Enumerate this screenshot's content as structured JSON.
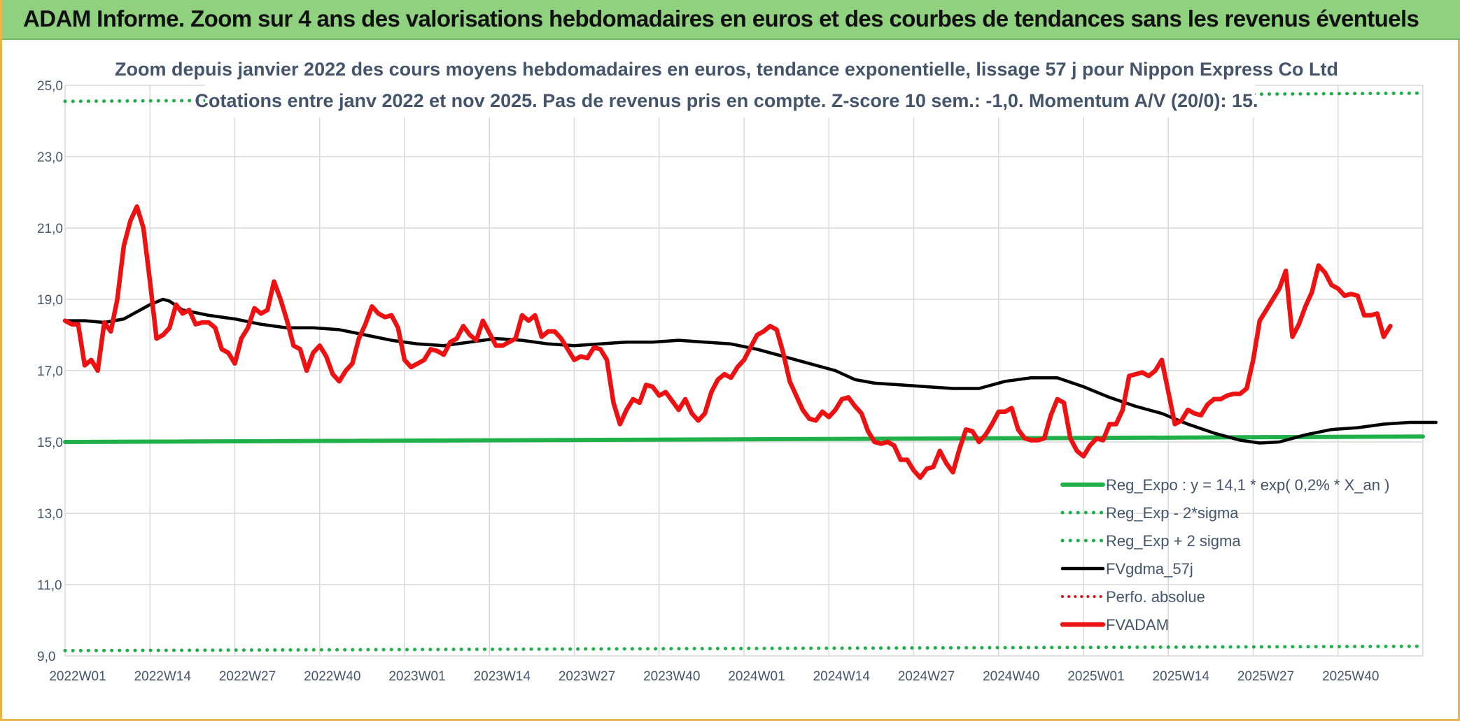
{
  "page": {
    "title": "ADAM Informe. Zoom sur 4 ans des valorisations hebdomadaires en euros et des courbes de tendances sans les revenus éventuels"
  },
  "colors": {
    "header_bg": "#8fd17f",
    "reg_expo": "#1fb04a",
    "sigma_bands": "#1fb04a",
    "fvgdma": "#000000",
    "perfo": "#e01010",
    "fvadam": "#ee1111",
    "grid": "#d9d9d9"
  },
  "chart_data": {
    "type": "line",
    "title_line1": "Zoom depuis janvier 2022 des cours moyens hebdomadaires en euros, tendance exponentielle, lissage 57 j pour Nippon Express Co Ltd",
    "title_line2": "Cotations entre janv 2022 et nov 2025. Pas de revenus pris en compte. Z-score 10 sem.: -1,0. Momentum A/V (20/0): 15.",
    "ylim": [
      9.0,
      25.0
    ],
    "yticks": [
      "9,0",
      "11,0",
      "13,0",
      "15,0",
      "17,0",
      "19,0",
      "21,0",
      "23,0",
      "25,0"
    ],
    "yticks_values": [
      9,
      11,
      13,
      15,
      17,
      19,
      21,
      23,
      25
    ],
    "xticks": [
      "2022W01",
      "2022W14",
      "2022W27",
      "2022W40",
      "2023W01",
      "2023W14",
      "2023W27",
      "2023W40",
      "2024W01",
      "2024W14",
      "2024W27",
      "2024W40",
      "2025W01",
      "2025W14",
      "2025W27",
      "2025W40"
    ],
    "x_week_count": 209,
    "legend_position": "lower-right",
    "series": [
      {
        "name": "Reg_Expo : y = 14,1 * exp( 0,2% *  X_an )",
        "style": "solid-green",
        "anchors": [
          [
            0,
            15.0
          ],
          [
            208,
            15.15
          ]
        ]
      },
      {
        "name": "Reg_Exp - 2*sigma",
        "style": "dotted-green",
        "anchors": [
          [
            0,
            9.15
          ],
          [
            208,
            9.27
          ]
        ]
      },
      {
        "name": "Reg_Exp + 2 sigma",
        "style": "dotted-green",
        "anchors": [
          [
            0,
            24.55
          ],
          [
            208,
            24.78
          ]
        ]
      },
      {
        "name": "FVgdma_57j",
        "style": "solid-black",
        "anchors": [
          [
            0,
            18.4
          ],
          [
            3,
            18.4
          ],
          [
            6,
            18.35
          ],
          [
            9,
            18.45
          ],
          [
            13,
            18.85
          ],
          [
            15,
            19.0
          ],
          [
            16,
            18.95
          ],
          [
            18,
            18.7
          ],
          [
            22,
            18.55
          ],
          [
            26,
            18.45
          ],
          [
            30,
            18.3
          ],
          [
            34,
            18.2
          ],
          [
            38,
            18.2
          ],
          [
            42,
            18.15
          ],
          [
            46,
            18.0
          ],
          [
            50,
            17.85
          ],
          [
            54,
            17.75
          ],
          [
            58,
            17.7
          ],
          [
            62,
            17.8
          ],
          [
            66,
            17.9
          ],
          [
            70,
            17.85
          ],
          [
            74,
            17.75
          ],
          [
            78,
            17.7
          ],
          [
            82,
            17.75
          ],
          [
            86,
            17.8
          ],
          [
            90,
            17.8
          ],
          [
            94,
            17.85
          ],
          [
            98,
            17.8
          ],
          [
            102,
            17.75
          ],
          [
            106,
            17.6
          ],
          [
            110,
            17.4
          ],
          [
            114,
            17.2
          ],
          [
            118,
            17.0
          ],
          [
            121,
            16.75
          ],
          [
            124,
            16.65
          ],
          [
            128,
            16.6
          ],
          [
            132,
            16.55
          ],
          [
            136,
            16.5
          ],
          [
            140,
            16.5
          ],
          [
            144,
            16.7
          ],
          [
            148,
            16.8
          ],
          [
            152,
            16.8
          ],
          [
            156,
            16.55
          ],
          [
            160,
            16.25
          ],
          [
            164,
            16.0
          ],
          [
            168,
            15.8
          ],
          [
            172,
            15.5
          ],
          [
            176,
            15.25
          ],
          [
            180,
            15.05
          ],
          [
            183,
            14.97
          ],
          [
            186,
            15.0
          ],
          [
            190,
            15.2
          ],
          [
            194,
            15.35
          ],
          [
            198,
            15.4
          ],
          [
            202,
            15.5
          ],
          [
            206,
            15.55
          ],
          [
            210,
            15.55
          ]
        ]
      },
      {
        "name": "Perfo. absolue",
        "style": "dotted-red",
        "anchors": []
      },
      {
        "name": "FVADAM",
        "style": "solid-red",
        "anchors": [
          [
            0,
            18.4
          ],
          [
            1,
            18.3
          ],
          [
            2,
            18.3
          ],
          [
            3,
            17.15
          ],
          [
            4,
            17.3
          ],
          [
            5,
            17.0
          ],
          [
            6,
            18.35
          ],
          [
            7,
            18.1
          ],
          [
            8,
            19.0
          ],
          [
            9,
            20.5
          ],
          [
            10,
            21.2
          ],
          [
            11,
            21.6
          ],
          [
            12,
            21.0
          ],
          [
            13,
            19.5
          ],
          [
            14,
            17.9
          ],
          [
            15,
            18.0
          ],
          [
            16,
            18.2
          ],
          [
            17,
            18.85
          ],
          [
            18,
            18.6
          ],
          [
            19,
            18.7
          ],
          [
            20,
            18.3
          ],
          [
            21,
            18.35
          ],
          [
            22,
            18.35
          ],
          [
            23,
            18.2
          ],
          [
            24,
            17.6
          ],
          [
            25,
            17.5
          ],
          [
            26,
            17.2
          ],
          [
            27,
            17.9
          ],
          [
            28,
            18.2
          ],
          [
            29,
            18.75
          ],
          [
            30,
            18.6
          ],
          [
            31,
            18.7
          ],
          [
            32,
            19.5
          ],
          [
            33,
            19.0
          ],
          [
            34,
            18.4
          ],
          [
            35,
            17.7
          ],
          [
            36,
            17.6
          ],
          [
            37,
            17.0
          ],
          [
            38,
            17.5
          ],
          [
            39,
            17.7
          ],
          [
            40,
            17.4
          ],
          [
            41,
            16.9
          ],
          [
            42,
            16.7
          ],
          [
            43,
            17.0
          ],
          [
            44,
            17.2
          ],
          [
            45,
            17.9
          ],
          [
            46,
            18.3
          ],
          [
            47,
            18.8
          ],
          [
            48,
            18.6
          ],
          [
            49,
            18.5
          ],
          [
            50,
            18.55
          ],
          [
            51,
            18.2
          ],
          [
            52,
            17.3
          ],
          [
            53,
            17.1
          ],
          [
            54,
            17.2
          ],
          [
            55,
            17.3
          ],
          [
            56,
            17.6
          ],
          [
            57,
            17.55
          ],
          [
            58,
            17.45
          ],
          [
            59,
            17.8
          ],
          [
            60,
            17.9
          ],
          [
            61,
            18.25
          ],
          [
            62,
            18.0
          ],
          [
            63,
            17.85
          ],
          [
            64,
            18.4
          ],
          [
            65,
            18.05
          ],
          [
            66,
            17.7
          ],
          [
            67,
            17.7
          ],
          [
            68,
            17.8
          ],
          [
            69,
            17.9
          ],
          [
            70,
            18.55
          ],
          [
            71,
            18.4
          ],
          [
            72,
            18.55
          ],
          [
            73,
            17.95
          ],
          [
            74,
            18.1
          ],
          [
            75,
            18.1
          ],
          [
            76,
            17.9
          ],
          [
            77,
            17.6
          ],
          [
            78,
            17.3
          ],
          [
            79,
            17.4
          ],
          [
            80,
            17.35
          ],
          [
            81,
            17.65
          ],
          [
            82,
            17.6
          ],
          [
            83,
            17.3
          ],
          [
            84,
            16.1
          ],
          [
            85,
            15.5
          ],
          [
            86,
            15.9
          ],
          [
            87,
            16.2
          ],
          [
            88,
            16.1
          ],
          [
            89,
            16.6
          ],
          [
            90,
            16.55
          ],
          [
            91,
            16.3
          ],
          [
            92,
            16.4
          ],
          [
            93,
            16.15
          ],
          [
            94,
            15.9
          ],
          [
            95,
            16.2
          ],
          [
            96,
            15.8
          ],
          [
            97,
            15.6
          ],
          [
            98,
            15.8
          ],
          [
            99,
            16.4
          ],
          [
            100,
            16.75
          ],
          [
            101,
            16.9
          ],
          [
            102,
            16.8
          ],
          [
            103,
            17.1
          ],
          [
            104,
            17.3
          ],
          [
            105,
            17.65
          ],
          [
            106,
            18.0
          ],
          [
            107,
            18.1
          ],
          [
            108,
            18.25
          ],
          [
            109,
            18.15
          ],
          [
            110,
            17.5
          ],
          [
            111,
            16.7
          ],
          [
            112,
            16.3
          ],
          [
            113,
            15.9
          ],
          [
            114,
            15.65
          ],
          [
            115,
            15.6
          ],
          [
            116,
            15.85
          ],
          [
            117,
            15.7
          ],
          [
            118,
            15.9
          ],
          [
            119,
            16.2
          ],
          [
            120,
            16.25
          ],
          [
            121,
            16.0
          ],
          [
            122,
            15.8
          ],
          [
            123,
            15.3
          ],
          [
            124,
            15.0
          ],
          [
            125,
            14.95
          ],
          [
            126,
            15.0
          ],
          [
            127,
            14.9
          ],
          [
            128,
            14.5
          ],
          [
            129,
            14.5
          ],
          [
            130,
            14.2
          ],
          [
            131,
            14.0
          ],
          [
            132,
            14.25
          ],
          [
            133,
            14.3
          ],
          [
            134,
            14.75
          ],
          [
            135,
            14.4
          ],
          [
            136,
            14.15
          ],
          [
            137,
            14.8
          ],
          [
            138,
            15.35
          ],
          [
            139,
            15.3
          ],
          [
            140,
            15.0
          ],
          [
            141,
            15.2
          ],
          [
            142,
            15.5
          ],
          [
            143,
            15.85
          ],
          [
            144,
            15.85
          ],
          [
            145,
            15.95
          ],
          [
            146,
            15.35
          ],
          [
            147,
            15.1
          ],
          [
            148,
            15.05
          ],
          [
            149,
            15.05
          ],
          [
            150,
            15.1
          ],
          [
            151,
            15.75
          ],
          [
            152,
            16.2
          ],
          [
            153,
            16.1
          ],
          [
            154,
            15.1
          ],
          [
            155,
            14.75
          ],
          [
            156,
            14.6
          ],
          [
            157,
            14.9
          ],
          [
            158,
            15.1
          ],
          [
            159,
            15.05
          ],
          [
            160,
            15.5
          ],
          [
            161,
            15.5
          ],
          [
            162,
            15.9
          ],
          [
            163,
            16.85
          ],
          [
            164,
            16.9
          ],
          [
            165,
            16.95
          ],
          [
            166,
            16.85
          ],
          [
            167,
            17.0
          ],
          [
            168,
            17.3
          ],
          [
            169,
            16.4
          ],
          [
            170,
            15.5
          ],
          [
            171,
            15.6
          ],
          [
            172,
            15.9
          ],
          [
            173,
            15.8
          ],
          [
            174,
            15.75
          ],
          [
            175,
            16.05
          ],
          [
            176,
            16.2
          ],
          [
            177,
            16.2
          ],
          [
            178,
            16.3
          ],
          [
            179,
            16.35
          ],
          [
            180,
            16.35
          ],
          [
            181,
            16.5
          ],
          [
            182,
            17.3
          ],
          [
            183,
            18.4
          ],
          [
            184,
            18.7
          ],
          [
            185,
            19.0
          ],
          [
            186,
            19.3
          ],
          [
            187,
            19.8
          ],
          [
            188,
            17.95
          ],
          [
            189,
            18.3
          ],
          [
            190,
            18.8
          ],
          [
            191,
            19.2
          ],
          [
            192,
            19.95
          ],
          [
            193,
            19.75
          ],
          [
            194,
            19.4
          ],
          [
            195,
            19.3
          ],
          [
            196,
            19.1
          ],
          [
            197,
            19.15
          ],
          [
            198,
            19.1
          ],
          [
            199,
            18.55
          ],
          [
            200,
            18.55
          ],
          [
            201,
            18.6
          ],
          [
            202,
            17.95
          ],
          [
            203,
            18.25
          ]
        ]
      }
    ]
  }
}
